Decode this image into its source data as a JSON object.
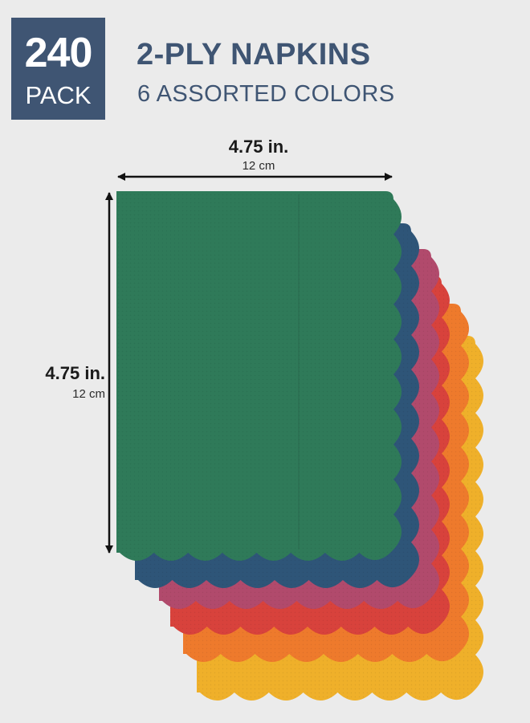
{
  "badge": {
    "count": "240",
    "unit": "PACK"
  },
  "title": "2-PLY NAPKINS",
  "subtitle": "6 ASSORTED COLORS",
  "dimensions": {
    "width": {
      "imperial": "4.75 in.",
      "metric": "12 cm"
    },
    "height": {
      "imperial": "4.75 in.",
      "metric": "12 cm"
    }
  },
  "napkin_colors": [
    {
      "name": "green",
      "hex": "#2f7a59"
    },
    {
      "name": "blue",
      "hex": "#2e5578"
    },
    {
      "name": "berry",
      "hex": "#b14a6c"
    },
    {
      "name": "red",
      "hex": "#d8423c"
    },
    {
      "name": "orange",
      "hex": "#ee7a2c"
    },
    {
      "name": "yellow",
      "hex": "#efb02a"
    }
  ],
  "colors": {
    "brand": "#3f5573",
    "background": "#ebebeb"
  }
}
